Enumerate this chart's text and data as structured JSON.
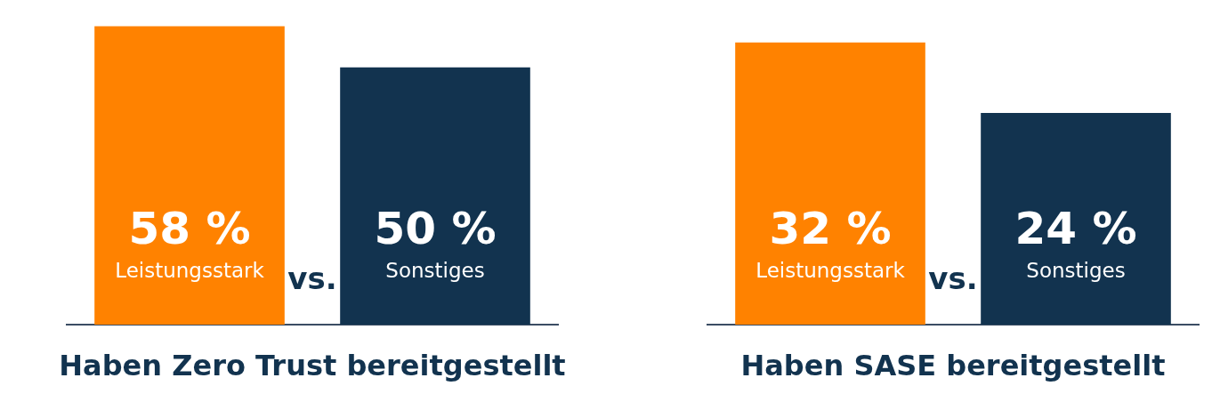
{
  "chart_data": [
    {
      "type": "bar",
      "title": "Haben Zero Trust bereitgestellt",
      "categories": [
        "Leistungsstark",
        "Sonstiges"
      ],
      "values": [
        58,
        50
      ],
      "colors": [
        "#ff8200",
        "#12334f"
      ],
      "value_labels": [
        "58 %",
        "50 %"
      ],
      "annotations": [
        "vs."
      ]
    },
    {
      "type": "bar",
      "title": "Haben SASE bereitgestellt",
      "categories": [
        "Leistungsstark",
        "Sonstiges"
      ],
      "values": [
        32,
        24
      ],
      "colors": [
        "#ff8200",
        "#12334f"
      ],
      "value_labels": [
        "32 %",
        "24 %"
      ],
      "annotations": [
        "vs."
      ]
    }
  ]
}
